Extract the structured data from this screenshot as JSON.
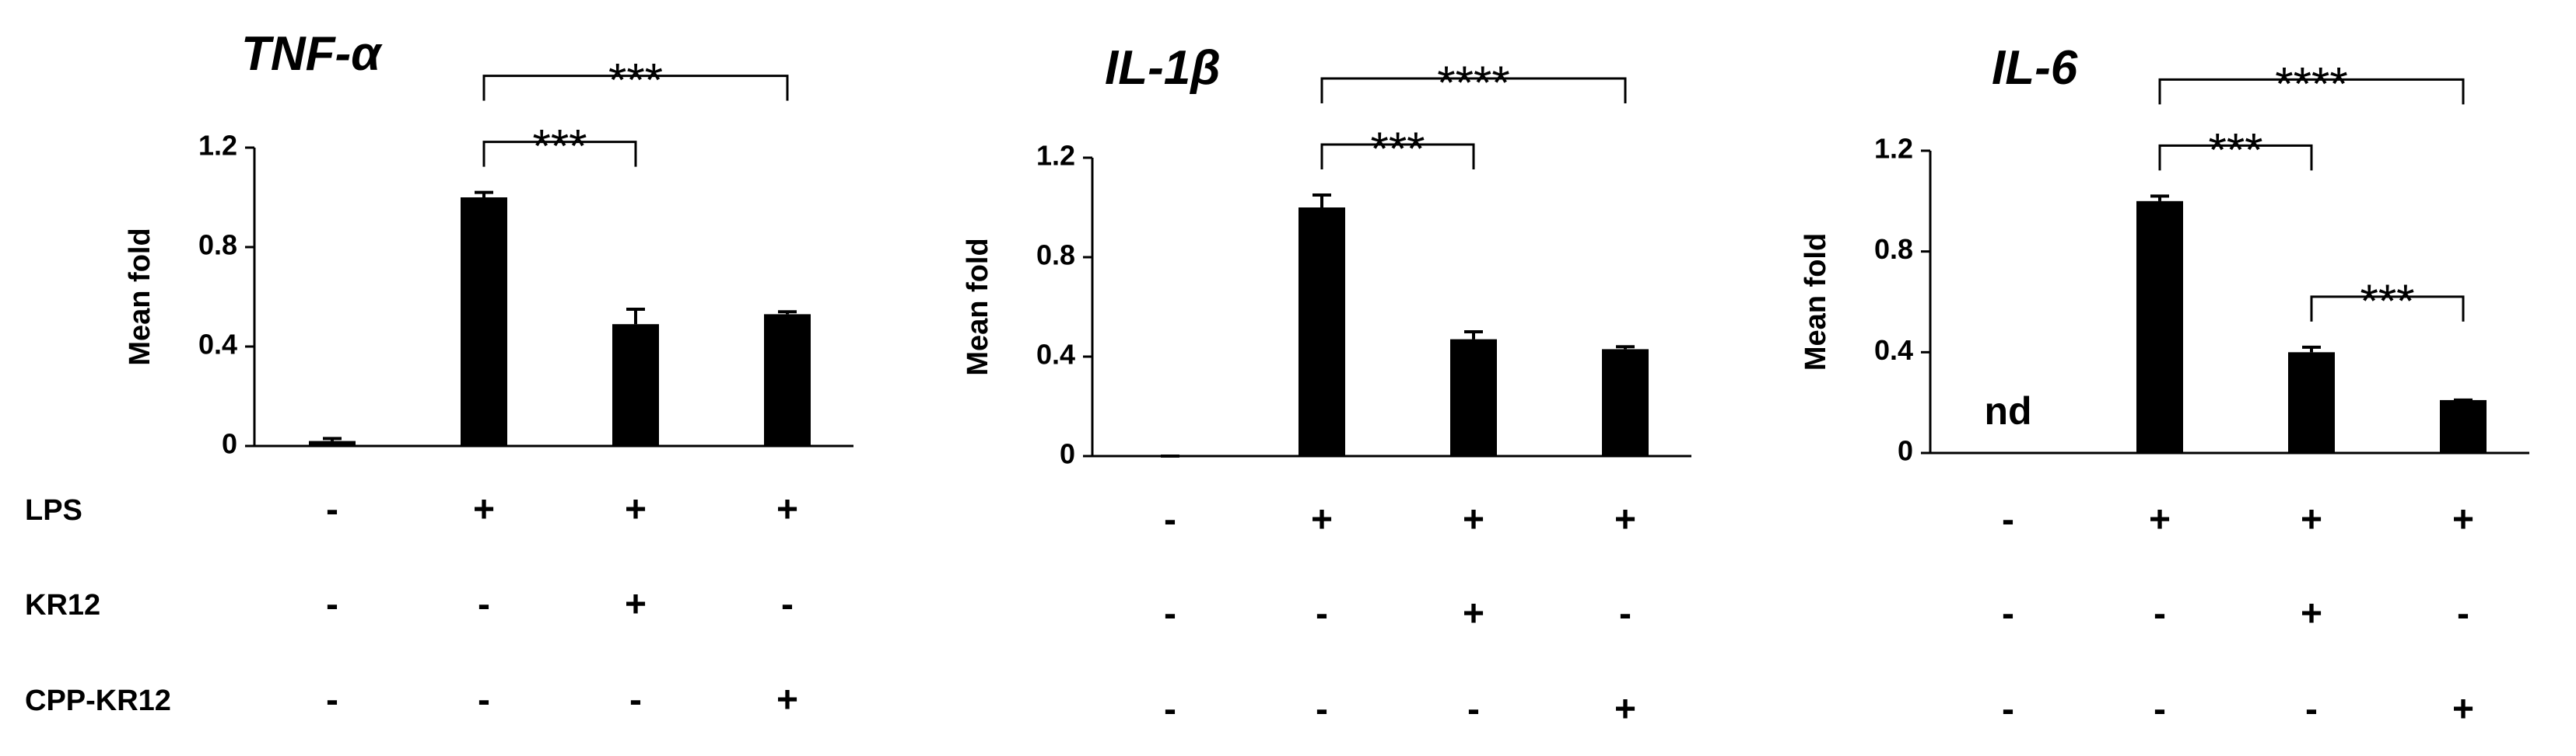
{
  "conditions": [
    "LPS",
    "KR12",
    "CPP-KR12"
  ],
  "chart_data": [
    {
      "type": "bar",
      "title": "TNF-α",
      "y_label": "Mean fold",
      "color": "#000000",
      "values": [
        0.02,
        1.0,
        0.49,
        0.53
      ],
      "errors": [
        0.01,
        0.02,
        0.06,
        0.01
      ],
      "ylim": [
        0,
        1.2
      ],
      "yticks": [
        0,
        0.4,
        0.8,
        1.2
      ],
      "signs": [
        [
          "-",
          "+",
          "+",
          "+"
        ],
        [
          "-",
          "-",
          "+",
          "-"
        ],
        [
          "-",
          "-",
          "-",
          "+"
        ]
      ],
      "brackets": [
        {
          "from": 1,
          "to": 2,
          "label": "***"
        },
        {
          "from": 1,
          "to": 3,
          "label": "***"
        }
      ]
    },
    {
      "type": "bar",
      "title": "IL-1β",
      "y_label": "Mean fold",
      "color": "#000000",
      "values": [
        0,
        1.0,
        0.47,
        0.43
      ],
      "errors": [
        0,
        0.05,
        0.03,
        0.01
      ],
      "ylim": [
        0,
        1.2
      ],
      "yticks": [
        0,
        0.4,
        0.8,
        1.2
      ],
      "signs": [
        [
          "-",
          "+",
          "+",
          "+"
        ],
        [
          "-",
          "-",
          "+",
          "-"
        ],
        [
          "-",
          "-",
          "-",
          "+"
        ]
      ],
      "brackets": [
        {
          "from": 1,
          "to": 2,
          "label": "***"
        },
        {
          "from": 1,
          "to": 3,
          "label": "****"
        }
      ]
    },
    {
      "type": "bar",
      "title": "IL-6",
      "y_label": "Mean fold",
      "color": "#000000",
      "values": [
        null,
        1.0,
        0.4,
        0.21
      ],
      "value_labels": [
        "nd",
        null,
        null,
        null
      ],
      "errors": [
        null,
        0.02,
        0.02,
        0
      ],
      "ylim": [
        0,
        1.2
      ],
      "yticks": [
        0,
        0.4,
        0.8,
        1.2
      ],
      "signs": [
        [
          "-",
          "+",
          "+",
          "+"
        ],
        [
          "-",
          "-",
          "+",
          "-"
        ],
        [
          "-",
          "-",
          "-",
          "+"
        ]
      ],
      "brackets": [
        {
          "from": 1,
          "to": 2,
          "label": "***"
        },
        {
          "from": 2,
          "to": 3,
          "label": "***"
        },
        {
          "from": 1,
          "to": 3,
          "label": "****"
        }
      ]
    }
  ]
}
